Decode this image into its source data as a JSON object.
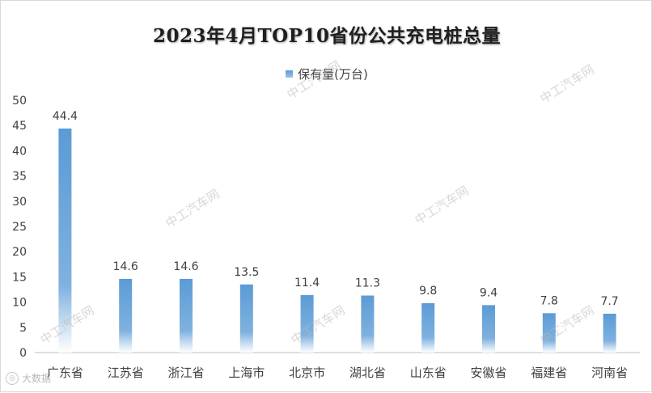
{
  "chart_data": {
    "type": "bar",
    "title": "2023年4月TOP10省份公共充电桩总量",
    "series": [
      {
        "name": "保有量(万台)",
        "values": [
          44.4,
          14.6,
          14.6,
          13.5,
          11.4,
          11.3,
          9.8,
          9.4,
          7.8,
          7.7
        ]
      }
    ],
    "categories": [
      "广东省",
      "江苏省",
      "浙江省",
      "上海市",
      "北京市",
      "湖北省",
      "山东省",
      "安徽省",
      "福建省",
      "河南省"
    ],
    "data_labels": [
      "44.4",
      "14.6",
      "14.6",
      "13.5",
      "11.4",
      "11.3",
      "9.8",
      "9.4",
      "7.8",
      "7.7"
    ],
    "ylim": [
      0,
      50
    ],
    "yticks": [
      "0",
      "5",
      "10",
      "15",
      "20",
      "25",
      "30",
      "35",
      "40",
      "45",
      "50"
    ],
    "xlabel": "",
    "ylabel": "",
    "legend_position": "top",
    "grid": false
  },
  "watermark_text": "中工汽车网",
  "footer_text": "大数据",
  "colors": {
    "bar_top": "#5b9bd5",
    "bar_bottom": "#ffffff",
    "axis": "#595959",
    "text": "#404040"
  }
}
